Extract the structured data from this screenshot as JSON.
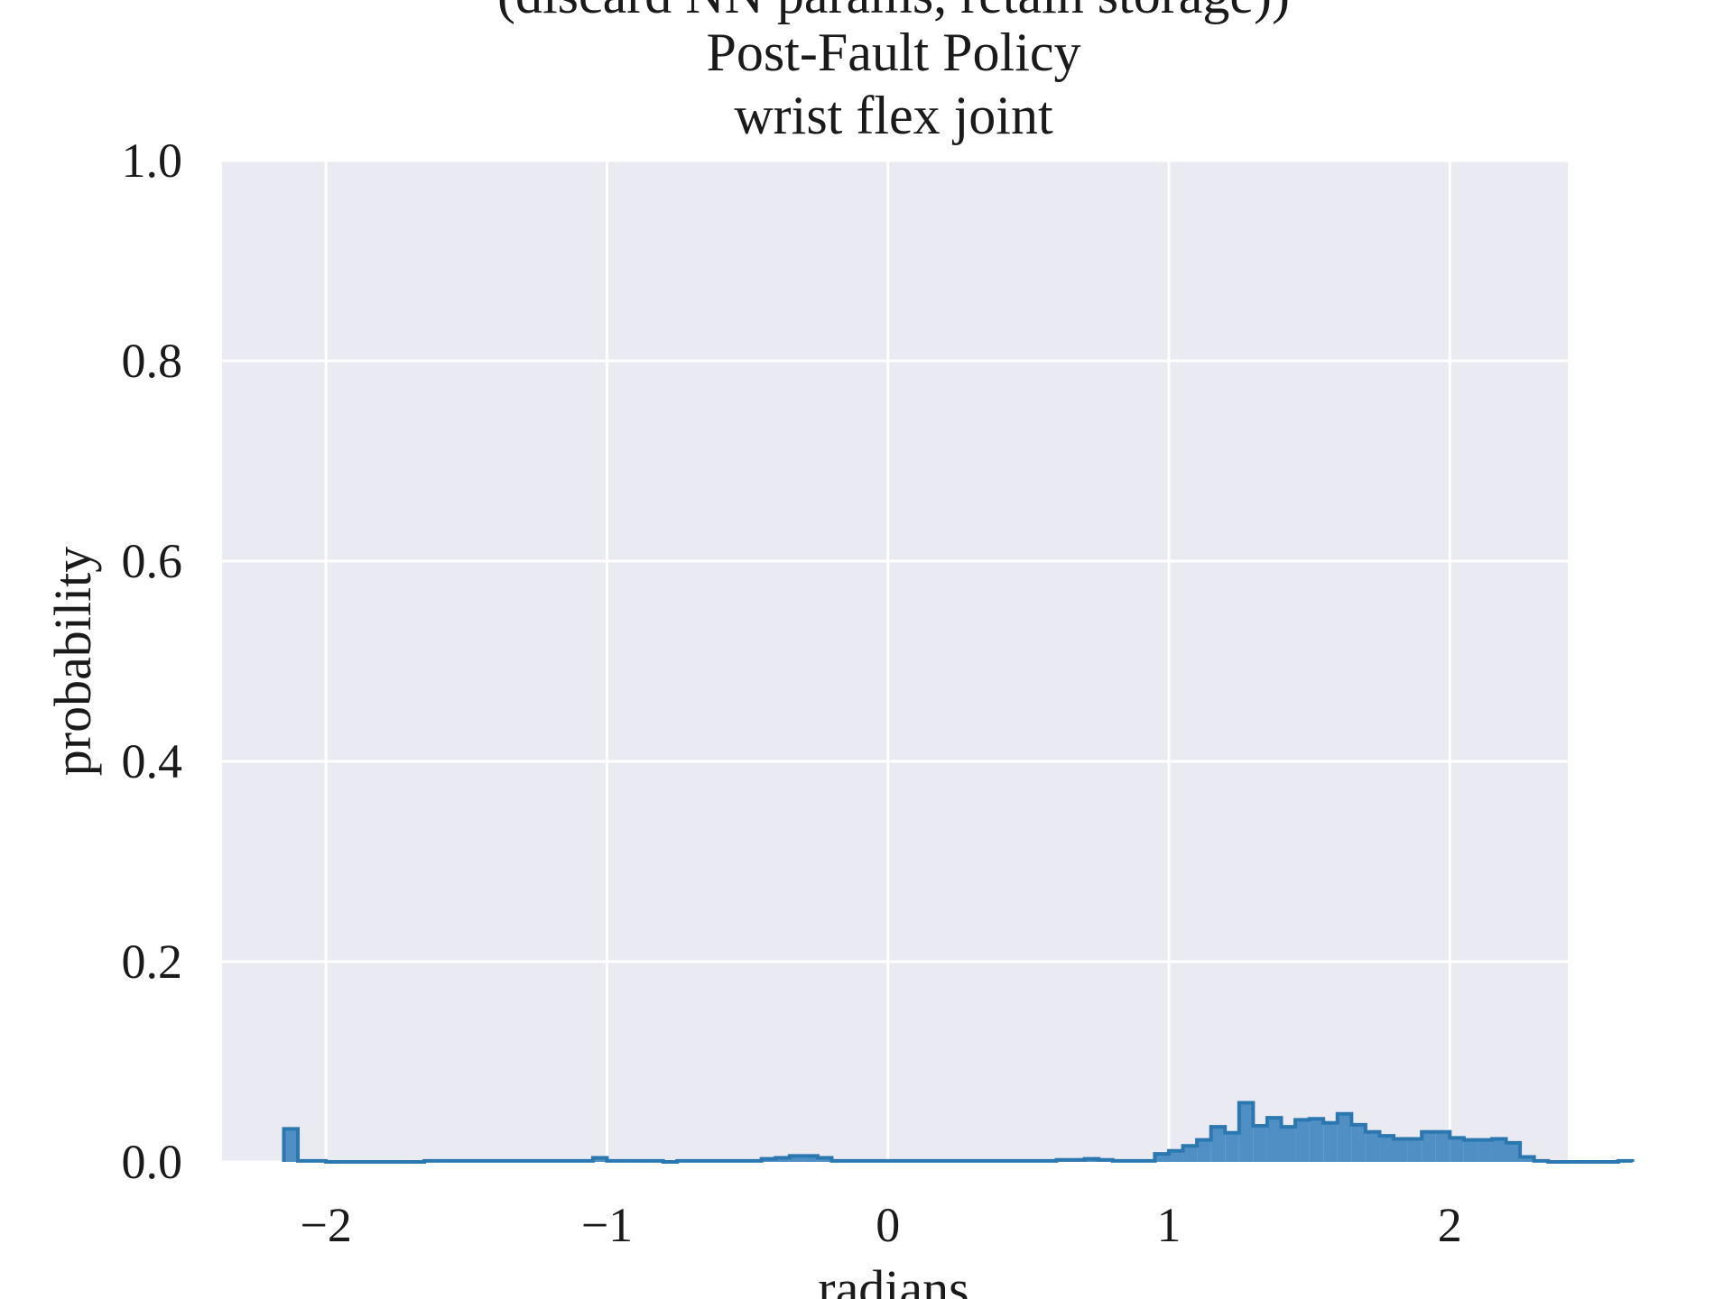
{
  "chart_data": {
    "type": "histogram",
    "title_lines": [
      "(discard NN params, retain storage))",
      "Post-Fault Policy",
      "wrist flex joint"
    ],
    "xlabel": "radians",
    "ylabel": "probability",
    "xlim": [
      -2.37,
      2.42
    ],
    "ylim": [
      0,
      1.0
    ],
    "x_ticks": [
      {
        "value": -2,
        "label": "−2"
      },
      {
        "value": -1,
        "label": "−1"
      },
      {
        "value": 0,
        "label": "0"
      },
      {
        "value": 1,
        "label": "1"
      },
      {
        "value": 2,
        "label": "2"
      }
    ],
    "y_ticks": [
      {
        "value": 0.0,
        "label": "0.0"
      },
      {
        "value": 0.2,
        "label": "0.2"
      },
      {
        "value": 0.4,
        "label": "0.4"
      },
      {
        "value": 0.6,
        "label": "0.6"
      },
      {
        "value": 0.8,
        "label": "0.8"
      },
      {
        "value": 1.0,
        "label": "1.0"
      }
    ],
    "grid": true,
    "colors": {
      "plot_background": "#e9eaf2",
      "grid": "#ffffff",
      "fill": "#4f8fc3",
      "edge": "#2b78b0"
    },
    "bin_start": -2.15,
    "bin_width": 0.05,
    "values": [
      0.033,
      0.001,
      0.001,
      0.0,
      0.0,
      0.0,
      0.0,
      0.0,
      0.0,
      0.0,
      0.001,
      0.001,
      0.001,
      0.001,
      0.001,
      0.001,
      0.001,
      0.001,
      0.001,
      0.001,
      0.001,
      0.001,
      0.004,
      0.001,
      0.001,
      0.001,
      0.001,
      0.0,
      0.001,
      0.001,
      0.001,
      0.001,
      0.001,
      0.001,
      0.003,
      0.004,
      0.006,
      0.006,
      0.004,
      0.001,
      0.001,
      0.001,
      0.001,
      0.001,
      0.001,
      0.001,
      0.001,
      0.001,
      0.001,
      0.001,
      0.001,
      0.001,
      0.001,
      0.001,
      0.001,
      0.002,
      0.002,
      0.003,
      0.002,
      0.001,
      0.001,
      0.001,
      0.008,
      0.011,
      0.016,
      0.022,
      0.035,
      0.029,
      0.059,
      0.036,
      0.044,
      0.035,
      0.042,
      0.043,
      0.039,
      0.048,
      0.037,
      0.03,
      0.026,
      0.023,
      0.023,
      0.03,
      0.03,
      0.024,
      0.022,
      0.022,
      0.023,
      0.019,
      0.005,
      0.001,
      0.0,
      0.0,
      0.0,
      0.0,
      0.0,
      0.001
    ]
  }
}
